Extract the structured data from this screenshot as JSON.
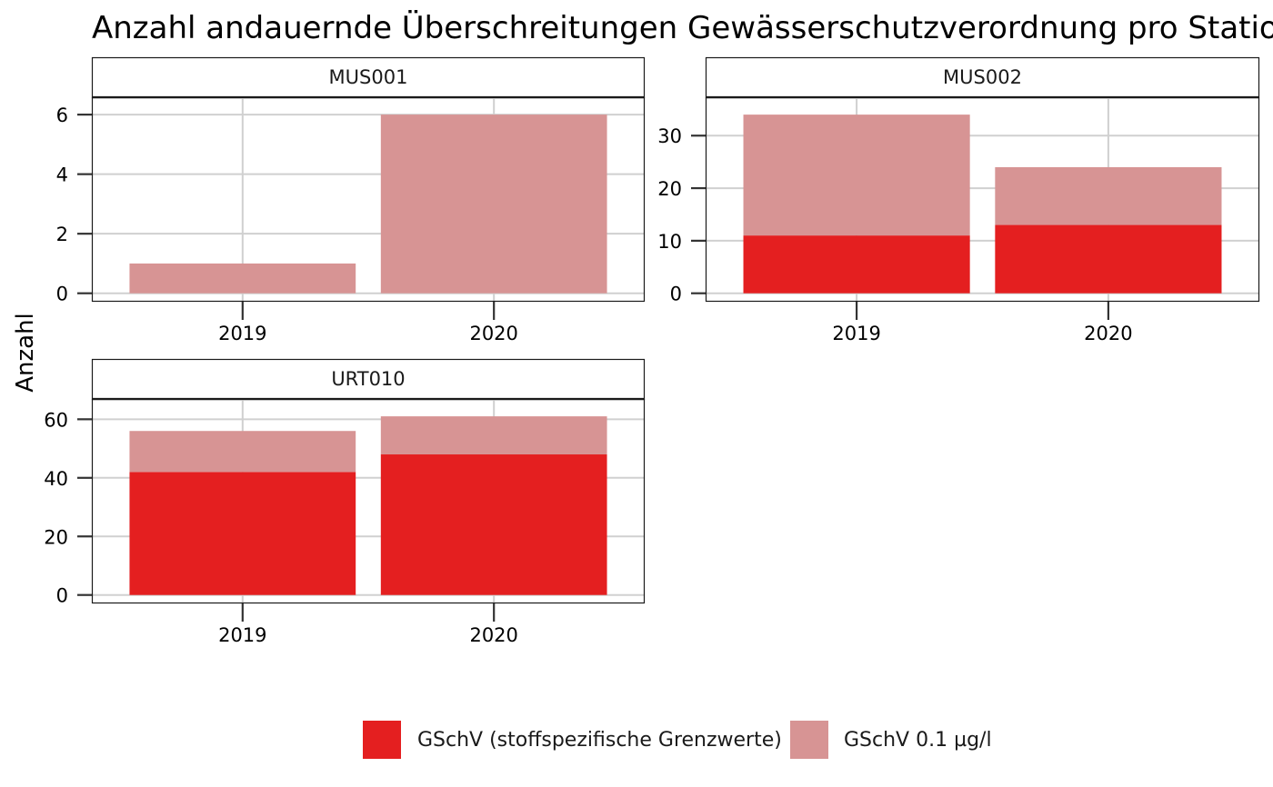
{
  "chart_data": {
    "type": "bar",
    "stacked": true,
    "title": "Anzahl andauernde Überschreitungen Gewässerschutzverordnung pro Station",
    "ylabel": "Anzahl",
    "xlabel": "",
    "grid": true,
    "legend_position": "bottom",
    "categories": [
      "2019",
      "2020"
    ],
    "series_order": [
      "GSchV (stoffspezifische Grenzwerte)",
      "GSchV 0.1 µg/l"
    ],
    "colors": {
      "GSchV (stoffspezifische Grenzwerte)": "#E41F20",
      "GSchV 0.1 µg/l": "#D79494"
    },
    "panels": [
      {
        "name": "MUS001",
        "ylim": [
          0,
          6.3
        ],
        "yticks": [
          0,
          2,
          4,
          6
        ],
        "series": [
          {
            "name": "GSchV (stoffspezifische Grenzwerte)",
            "values": [
              0,
              0
            ]
          },
          {
            "name": "GSchV 0.1 µg/l",
            "values": [
              1,
              6
            ]
          }
        ]
      },
      {
        "name": "MUS002",
        "ylim": [
          0,
          35.7
        ],
        "yticks": [
          0,
          10,
          20,
          30
        ],
        "series": [
          {
            "name": "GSchV (stoffspezifische Grenzwerte)",
            "values": [
              11,
              13
            ]
          },
          {
            "name": "GSchV 0.1 µg/l",
            "values": [
              23,
              11
            ]
          }
        ]
      },
      {
        "name": "URT010",
        "ylim": [
          0,
          64.05
        ],
        "yticks": [
          0,
          20,
          40,
          60
        ],
        "series": [
          {
            "name": "GSchV (stoffspezifische Grenzwerte)",
            "values": [
              42,
              48
            ]
          },
          {
            "name": "GSchV 0.1 µg/l",
            "values": [
              14,
              13
            ]
          }
        ]
      }
    ]
  }
}
